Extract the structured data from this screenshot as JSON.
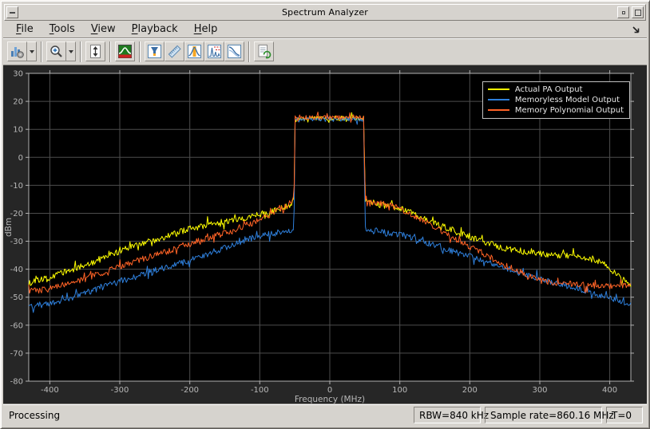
{
  "window": {
    "title": "Spectrum Analyzer"
  },
  "menu": {
    "items": [
      {
        "label": "File",
        "underline": 0
      },
      {
        "label": "Tools",
        "underline": 0
      },
      {
        "label": "View",
        "underline": 0
      },
      {
        "label": "Playback",
        "underline": 0
      },
      {
        "label": "Help",
        "underline": 0
      }
    ],
    "dock_icon": "dock-arrow-icon"
  },
  "toolbar": {
    "buttons": [
      {
        "icon": "spectrum-settings-icon",
        "arrow": true
      },
      {
        "sep": true
      },
      {
        "icon": "zoom-in-icon",
        "arrow": true
      },
      {
        "sep": true
      },
      {
        "icon": "fit-to-view-icon"
      },
      {
        "sep": true
      },
      {
        "icon": "spectrogram-icon"
      },
      {
        "sep": true
      },
      {
        "icon": "peak-finder-icon"
      },
      {
        "icon": "distortion-measurements-icon"
      },
      {
        "icon": "channel-measurements-icon"
      },
      {
        "icon": "harmonic-distortion-icon"
      },
      {
        "icon": "spectral-mask-icon"
      },
      {
        "sep": true
      },
      {
        "icon": "playback-settings-icon"
      }
    ]
  },
  "chart_data": {
    "type": "line",
    "title": "",
    "xlabel": "Frequency (MHz)",
    "ylabel": "dBm",
    "xlim": [
      -430.08,
      430.08
    ],
    "ylim": [
      -80,
      30
    ],
    "xticks": [
      -400,
      -300,
      -200,
      -100,
      0,
      100,
      200,
      300,
      400
    ],
    "yticks": [
      30,
      20,
      10,
      0,
      -10,
      -20,
      -30,
      -40,
      -50,
      -60,
      -70,
      -80
    ],
    "grid": true,
    "plot_bg": "#000000",
    "figure_bg": "#262626",
    "grid_color": "#4d4d4d",
    "axis_color": "#b3b3b3",
    "label_color": "#b8b8b8",
    "legend": {
      "position": "top-right",
      "border_color": "#c0c0c0",
      "text_color": "#e8e8e8"
    },
    "passband_mhz": [
      -50,
      50
    ],
    "passband_level_dbm": 14,
    "noise_db": 1.1,
    "series": [
      {
        "name": "Actual PA Output",
        "color": "#ffff00",
        "breakpoints": [
          [
            -430,
            -45
          ],
          [
            -400,
            -43
          ],
          [
            -350,
            -38.5
          ],
          [
            -300,
            -33.5
          ],
          [
            -250,
            -29.5
          ],
          [
            -200,
            -25.5
          ],
          [
            -150,
            -23
          ],
          [
            -100,
            -20.5
          ],
          [
            -60,
            -17.5
          ],
          [
            -51,
            -15.5
          ],
          [
            -50,
            14
          ],
          [
            49,
            14
          ],
          [
            50,
            -15
          ],
          [
            60,
            -16.5
          ],
          [
            100,
            -18
          ],
          [
            150,
            -23.5
          ],
          [
            200,
            -28.5
          ],
          [
            250,
            -32.5
          ],
          [
            300,
            -34.5
          ],
          [
            350,
            -35.5
          ],
          [
            390,
            -37.5
          ],
          [
            410,
            -42
          ],
          [
            430,
            -46
          ]
        ]
      },
      {
        "name": "Memoryless Model Output",
        "color": "#2e7fdb",
        "breakpoints": [
          [
            -430,
            -53
          ],
          [
            -400,
            -52.5
          ],
          [
            -350,
            -48.5
          ],
          [
            -300,
            -44.5
          ],
          [
            -250,
            -40.5
          ],
          [
            -200,
            -37
          ],
          [
            -150,
            -32.5
          ],
          [
            -100,
            -28
          ],
          [
            -60,
            -26.5
          ],
          [
            -51,
            -26
          ],
          [
            -50,
            13.6
          ],
          [
            49,
            13.6
          ],
          [
            50,
            -26
          ],
          [
            100,
            -27.5
          ],
          [
            150,
            -31.5
          ],
          [
            200,
            -35.5
          ],
          [
            250,
            -39.5
          ],
          [
            300,
            -43.5
          ],
          [
            350,
            -46.5
          ],
          [
            400,
            -50.5
          ],
          [
            430,
            -52.5
          ]
        ]
      },
      {
        "name": "Memory Polynomial Output",
        "color": "#ff6326",
        "breakpoints": [
          [
            -430,
            -48
          ],
          [
            -400,
            -47
          ],
          [
            -350,
            -43.5
          ],
          [
            -300,
            -39
          ],
          [
            -250,
            -35
          ],
          [
            -200,
            -31
          ],
          [
            -150,
            -27
          ],
          [
            -100,
            -22.5
          ],
          [
            -60,
            -17
          ],
          [
            -51,
            -15
          ],
          [
            -50,
            14.2
          ],
          [
            49,
            14.2
          ],
          [
            50,
            -14.5
          ],
          [
            60,
            -16
          ],
          [
            100,
            -18
          ],
          [
            150,
            -25
          ],
          [
            200,
            -32
          ],
          [
            250,
            -38.5
          ],
          [
            280,
            -42
          ],
          [
            300,
            -44
          ],
          [
            350,
            -45.5
          ],
          [
            400,
            -46
          ],
          [
            430,
            -46
          ]
        ]
      }
    ]
  },
  "status_bar": {
    "left": "Processing",
    "panels": [
      "RBW=840 kHz",
      "Sample rate=860.16 MHz",
      "T=0"
    ]
  }
}
